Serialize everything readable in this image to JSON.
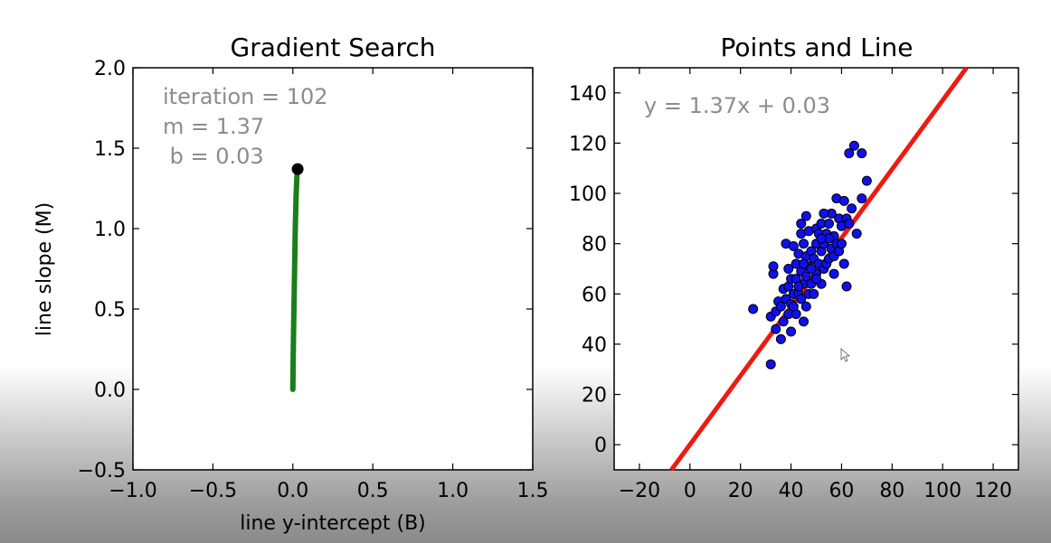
{
  "chart_data": [
    {
      "type": "line",
      "title": "Gradient Search",
      "xlabel": "line y-intercept (B)",
      "ylabel": "line slope (M)",
      "xlim": [
        -1.0,
        1.5
      ],
      "ylim": [
        -0.5,
        2.0
      ],
      "xticks": [
        "−1.0",
        "−0.5",
        "0.0",
        "0.5",
        "1.0",
        "1.5"
      ],
      "xtick_values": [
        -1.0,
        -0.5,
        0.0,
        0.5,
        1.0,
        1.5
      ],
      "yticks": [
        "−0.5",
        "0.0",
        "0.5",
        "1.0",
        "1.5",
        "2.0"
      ],
      "ytick_values": [
        -0.5,
        0.0,
        0.5,
        1.0,
        1.5,
        2.0
      ],
      "annotations": [
        "iteration = 102",
        "m = 1.37",
        " b = 0.03"
      ],
      "path_color": "#1a7f1a",
      "path": {
        "x": [
          0.0,
          0.002,
          0.005,
          0.01,
          0.015,
          0.02,
          0.025,
          0.03
        ],
        "y": [
          0.0,
          0.2,
          0.4,
          0.7,
          1.0,
          1.2,
          1.32,
          1.37
        ]
      },
      "current_point": {
        "x": 0.03,
        "y": 1.37,
        "color": "#000000"
      }
    },
    {
      "type": "scatter",
      "title": "Points and Line",
      "xlim": [
        -30,
        130
      ],
      "ylim": [
        -10,
        150
      ],
      "xticks": [
        "−20",
        "0",
        "20",
        "40",
        "60",
        "80",
        "100",
        "120"
      ],
      "xtick_values": [
        -20,
        0,
        20,
        40,
        60,
        80,
        100,
        120
      ],
      "yticks": [
        "0",
        "20",
        "40",
        "60",
        "80",
        "100",
        "120",
        "140"
      ],
      "ytick_values": [
        0,
        20,
        40,
        60,
        80,
        100,
        120,
        140
      ],
      "annotation": "y = 1.37x + 0.03",
      "point_color": "#1010ee",
      "line_color": "#ee1a10",
      "line": {
        "slope": 1.37,
        "intercept": 0.03
      },
      "points": [
        [
          25,
          54
        ],
        [
          32,
          32
        ],
        [
          32,
          51
        ],
        [
          33,
          68
        ],
        [
          33,
          71
        ],
        [
          34,
          46
        ],
        [
          34,
          53
        ],
        [
          35,
          57
        ],
        [
          36,
          42
        ],
        [
          36,
          55
        ],
        [
          37,
          49
        ],
        [
          37,
          62
        ],
        [
          38,
          58
        ],
        [
          38,
          80
        ],
        [
          39,
          52
        ],
        [
          39,
          63
        ],
        [
          40,
          45
        ],
        [
          40,
          56
        ],
        [
          40,
          66
        ],
        [
          41,
          60
        ],
        [
          41,
          79
        ],
        [
          42,
          52
        ],
        [
          42,
          66
        ],
        [
          42,
          72
        ],
        [
          43,
          60
        ],
        [
          43,
          76
        ],
        [
          44,
          58
        ],
        [
          44,
          69
        ],
        [
          44,
          84
        ],
        [
          44,
          88
        ],
        [
          45,
          49
        ],
        [
          45,
          64
        ],
        [
          45,
          80
        ],
        [
          46,
          67
        ],
        [
          46,
          75
        ],
        [
          46,
          91
        ],
        [
          47,
          60
        ],
        [
          47,
          71
        ],
        [
          47,
          85
        ],
        [
          48,
          64
        ],
        [
          48,
          77
        ],
        [
          49,
          60
        ],
        [
          49,
          74
        ],
        [
          50,
          68
        ],
        [
          50,
          80
        ],
        [
          50,
          86
        ],
        [
          51,
          72
        ],
        [
          51,
          84
        ],
        [
          52,
          64
        ],
        [
          52,
          77
        ],
        [
          52,
          88
        ],
        [
          53,
          70
        ],
        [
          53,
          80
        ],
        [
          54,
          72
        ],
        [
          54,
          84
        ],
        [
          55,
          74
        ],
        [
          55,
          88
        ],
        [
          56,
          78
        ],
        [
          56,
          92
        ],
        [
          57,
          75
        ],
        [
          57,
          83
        ],
        [
          58,
          80
        ],
        [
          58,
          98
        ],
        [
          59,
          77
        ],
        [
          59,
          90
        ],
        [
          60,
          80
        ],
        [
          60,
          87
        ],
        [
          61,
          72
        ],
        [
          61,
          97
        ],
        [
          62,
          63
        ],
        [
          62,
          90
        ],
        [
          63,
          88
        ],
        [
          63,
          116
        ],
        [
          64,
          94
        ],
        [
          65,
          119
        ],
        [
          66,
          84
        ],
        [
          68,
          98
        ],
        [
          68,
          116
        ],
        [
          70,
          105
        ],
        [
          50,
          66
        ],
        [
          48,
          70
        ],
        [
          43,
          63
        ],
        [
          46,
          55
        ],
        [
          39,
          70
        ],
        [
          55,
          82
        ],
        [
          53,
          92
        ],
        [
          57,
          68
        ],
        [
          41,
          55
        ],
        [
          45,
          72
        ],
        [
          52,
          82
        ]
      ]
    }
  ]
}
